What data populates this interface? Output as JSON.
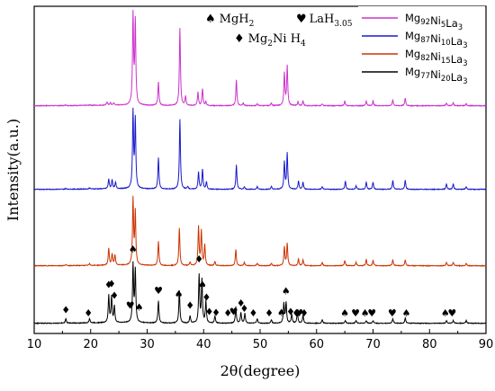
{
  "chart_data": {
    "type": "line",
    "title": "",
    "xlabel": "2θ(degree)",
    "ylabel": "Intensity(a.u.)",
    "xlim": [
      10,
      90
    ],
    "xticks": [
      10,
      20,
      30,
      40,
      50,
      60,
      70,
      80,
      90
    ],
    "yticks_shown": false,
    "grid": false,
    "legend_position": "top-right",
    "series": [
      {
        "name_parts": [
          [
            "Mg",
            ""
          ],
          [
            "92",
            "sub"
          ],
          [
            "Ni",
            ""
          ],
          [
            "5",
            "sub"
          ],
          [
            "La",
            ""
          ],
          [
            "3",
            "sub"
          ]
        ],
        "color": "#cc33cc",
        "baseline": 0.35,
        "peaks": [
          [
            15.6,
            0.8
          ],
          [
            19.8,
            0.6
          ],
          [
            22.9,
            3.5
          ],
          [
            23.5,
            2.5
          ],
          [
            24.1,
            2.5
          ],
          [
            27.5,
            95
          ],
          [
            27.9,
            88
          ],
          [
            32.0,
            25
          ],
          [
            35.8,
            82
          ],
          [
            36.8,
            10
          ],
          [
            39.0,
            14
          ],
          [
            39.8,
            18
          ],
          [
            40.4,
            4
          ],
          [
            45.8,
            27
          ],
          [
            47.0,
            3
          ],
          [
            49.5,
            2
          ],
          [
            52.0,
            3
          ],
          [
            54.3,
            34
          ],
          [
            54.8,
            42
          ],
          [
            56.7,
            4
          ],
          [
            57.6,
            5
          ],
          [
            61.0,
            2
          ],
          [
            65.0,
            5
          ],
          [
            68.8,
            5
          ],
          [
            70.0,
            5
          ],
          [
            73.5,
            6
          ],
          [
            75.7,
            8
          ],
          [
            83.0,
            3
          ],
          [
            84.2,
            3
          ],
          [
            86.5,
            2
          ]
        ]
      },
      {
        "name_parts": [
          [
            "Mg",
            ""
          ],
          [
            "87",
            "sub"
          ],
          [
            "Ni",
            ""
          ],
          [
            "10",
            "sub"
          ],
          [
            "La",
            ""
          ],
          [
            "3",
            "sub"
          ]
        ],
        "color": "#1a1acc",
        "baseline": 0.35,
        "peaks": [
          [
            15.6,
            1.0
          ],
          [
            19.8,
            1.3
          ],
          [
            23.2,
            11
          ],
          [
            23.8,
            10
          ],
          [
            24.4,
            7
          ],
          [
            27.5,
            85
          ],
          [
            27.9,
            76
          ],
          [
            32.0,
            35
          ],
          [
            35.8,
            78
          ],
          [
            37.2,
            3
          ],
          [
            39.1,
            19
          ],
          [
            39.8,
            22
          ],
          [
            40.5,
            8
          ],
          [
            45.8,
            27
          ],
          [
            47.2,
            3
          ],
          [
            49.5,
            3
          ],
          [
            52.0,
            3
          ],
          [
            54.3,
            30
          ],
          [
            54.8,
            40
          ],
          [
            56.8,
            9
          ],
          [
            57.6,
            8
          ],
          [
            61.0,
            3
          ],
          [
            65.1,
            9
          ],
          [
            67.0,
            4
          ],
          [
            68.8,
            8
          ],
          [
            70.0,
            8
          ],
          [
            73.5,
            10
          ],
          [
            75.7,
            10
          ],
          [
            83.0,
            6
          ],
          [
            84.2,
            6
          ],
          [
            86.5,
            3
          ]
        ]
      },
      {
        "name_parts": [
          [
            "Mg",
            ""
          ],
          [
            "82",
            "sub"
          ],
          [
            "Ni",
            ""
          ],
          [
            "15",
            "sub"
          ],
          [
            "La",
            ""
          ],
          [
            "3",
            "sub"
          ]
        ],
        "color": "#cc3300",
        "baseline": 0.35,
        "peaks": [
          [
            15.6,
            1.3
          ],
          [
            19.8,
            2
          ],
          [
            23.2,
            20
          ],
          [
            23.8,
            13
          ],
          [
            24.3,
            12
          ],
          [
            27.5,
            77
          ],
          [
            27.9,
            62
          ],
          [
            32.0,
            28
          ],
          [
            35.7,
            44
          ],
          [
            37.6,
            4
          ],
          [
            39.1,
            45
          ],
          [
            39.6,
            40
          ],
          [
            40.2,
            24
          ],
          [
            42.0,
            5
          ],
          [
            45.7,
            19
          ],
          [
            47.2,
            4
          ],
          [
            49.5,
            3
          ],
          [
            52.0,
            3
          ],
          [
            54.3,
            22
          ],
          [
            54.8,
            26
          ],
          [
            56.8,
            8
          ],
          [
            57.6,
            7
          ],
          [
            61.0,
            4
          ],
          [
            65.0,
            6
          ],
          [
            67.0,
            4
          ],
          [
            68.8,
            7
          ],
          [
            70.0,
            6
          ],
          [
            73.5,
            7
          ],
          [
            75.7,
            7
          ],
          [
            83.0,
            4
          ],
          [
            84.2,
            4
          ],
          [
            86.5,
            3
          ]
        ]
      },
      {
        "name_parts": [
          [
            "Mg",
            ""
          ],
          [
            "77",
            "sub"
          ],
          [
            "Ni",
            ""
          ],
          [
            "20",
            "sub"
          ],
          [
            "La",
            ""
          ],
          [
            "3",
            "sub"
          ]
        ],
        "color": "#000000",
        "baseline": 0.35,
        "peaks": [
          [
            15.6,
            5
          ],
          [
            19.8,
            5
          ],
          [
            23.2,
            30
          ],
          [
            23.7,
            29
          ],
          [
            24.2,
            18
          ],
          [
            27.5,
            64
          ],
          [
            27.9,
            58
          ],
          [
            32.0,
            25
          ],
          [
            35.7,
            36
          ],
          [
            37.6,
            8
          ],
          [
            39.2,
            53
          ],
          [
            39.7,
            48
          ],
          [
            40.4,
            24
          ],
          [
            42.0,
            8
          ],
          [
            45.7,
            18
          ],
          [
            46.6,
            12
          ],
          [
            47.3,
            11
          ],
          [
            49.5,
            5
          ],
          [
            52.0,
            4
          ],
          [
            54.2,
            22
          ],
          [
            54.6,
            23
          ],
          [
            55.6,
            10
          ],
          [
            56.6,
            12
          ],
          [
            57.6,
            9
          ],
          [
            61.0,
            4
          ],
          [
            65.1,
            3
          ],
          [
            67.0,
            3
          ],
          [
            68.8,
            3
          ],
          [
            70.0,
            3
          ],
          [
            73.5,
            5
          ],
          [
            75.7,
            6
          ],
          [
            83.0,
            3
          ],
          [
            84.2,
            3
          ],
          [
            86.5,
            3
          ]
        ]
      }
    ],
    "phase_legend": {
      "mgh2": "MgH",
      "mgh2_sub": "2",
      "lah": "LaH",
      "lah_sub": "3.05",
      "mg2ni_a": "Mg",
      "mg2ni_sub": "2",
      "mg2ni_b": "Ni  H",
      "mg2ni_sub2": "4",
      "mgh2_symbol": "♠",
      "lah_symbol": "♥",
      "mg2ni_symbol": "♦"
    },
    "phase_markers": [
      {
        "x": 15.6,
        "type": "diamond",
        "level": 0
      },
      {
        "x": 19.6,
        "type": "diamond",
        "level": 0
      },
      {
        "x": 23.2,
        "type": "diamond",
        "level": 1
      },
      {
        "x": 23.7,
        "type": "diamond",
        "level": 2
      },
      {
        "x": 24.2,
        "type": "diamond",
        "level": 1
      },
      {
        "x": 27.0,
        "type": "heart",
        "level": 4
      },
      {
        "x": 27.5,
        "type": "spade",
        "level": 3
      },
      {
        "x": 28.6,
        "type": "spade",
        "level": 4
      },
      {
        "x": 32.0,
        "type": "heart",
        "level": 1
      },
      {
        "x": 35.6,
        "type": "spade",
        "level": 2
      },
      {
        "x": 37.6,
        "type": "diamond",
        "level": 1
      },
      {
        "x": 39.2,
        "type": "diamond",
        "level": 4
      },
      {
        "x": 39.8,
        "type": "spade",
        "level": 3
      },
      {
        "x": 40.5,
        "type": "diamond",
        "level": 3
      },
      {
        "x": 41.0,
        "type": "diamond",
        "level": 1
      },
      {
        "x": 42.2,
        "type": "diamond",
        "level": 0
      },
      {
        "x": 44.3,
        "type": "diamond",
        "level": 0
      },
      {
        "x": 45.3,
        "type": "heart",
        "level": 1
      },
      {
        "x": 46.6,
        "type": "diamond",
        "level": 0
      },
      {
        "x": 47.2,
        "type": "diamond",
        "level": 0
      },
      {
        "x": 48.8,
        "type": "diamond",
        "level": -1
      },
      {
        "x": 51.6,
        "type": "diamond",
        "level": -1
      },
      {
        "x": 53.8,
        "type": "spade",
        "level": 0
      },
      {
        "x": 54.6,
        "type": "spade",
        "level": 1
      },
      {
        "x": 55.4,
        "type": "diamond",
        "level": 0
      },
      {
        "x": 56.4,
        "type": "diamond",
        "level": -1
      },
      {
        "x": 56.9,
        "type": "heart",
        "level": 0
      },
      {
        "x": 57.8,
        "type": "diamond",
        "level": -1
      },
      {
        "x": 65.0,
        "type": "spade",
        "level": -1
      },
      {
        "x": 66.9,
        "type": "heart",
        "level": -1
      },
      {
        "x": 68.6,
        "type": "spade",
        "level": -1
      },
      {
        "x": 69.8,
        "type": "heart",
        "level": -1
      },
      {
        "x": 73.4,
        "type": "heart",
        "level": -1
      },
      {
        "x": 75.9,
        "type": "spade",
        "level": -1
      },
      {
        "x": 82.8,
        "type": "spade",
        "level": -1
      },
      {
        "x": 84.0,
        "type": "heart",
        "level": -1
      }
    ]
  }
}
